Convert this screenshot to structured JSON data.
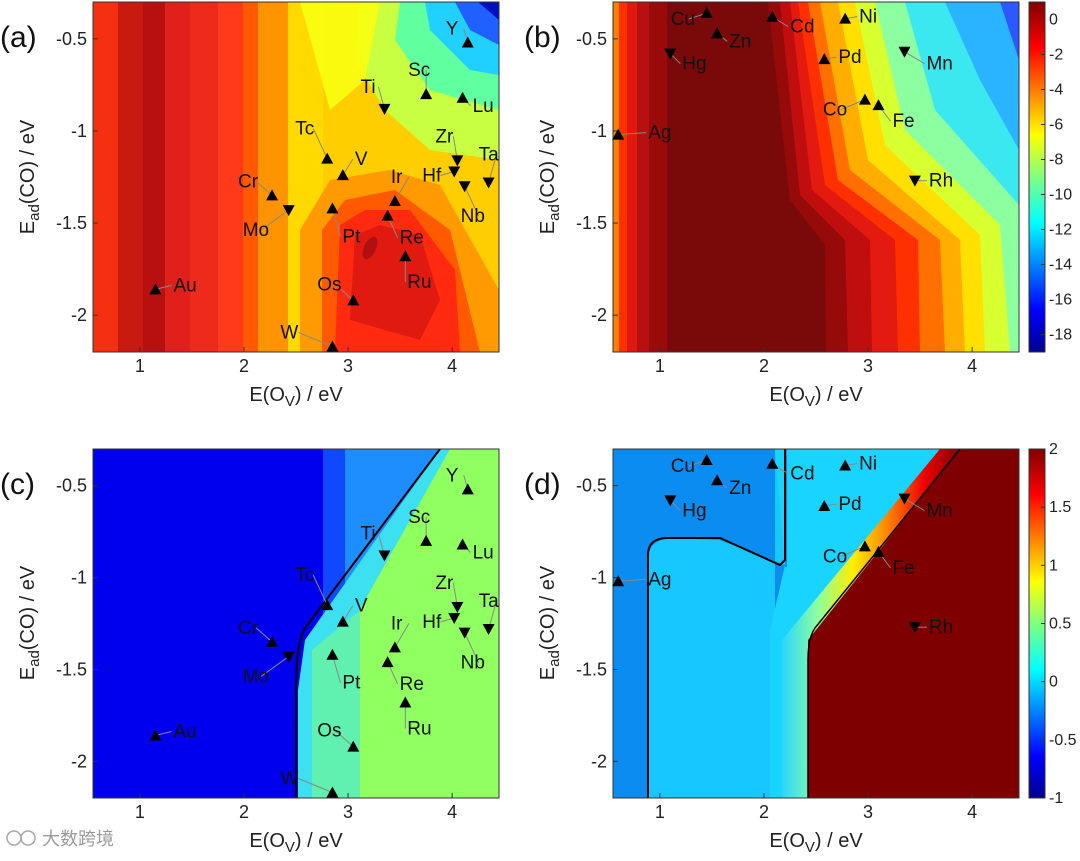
{
  "figure": {
    "watermark": "大数跨境",
    "xlabel": "E(O",
    "xlabel_sub": "V",
    "xlabel_tail": ") / eV",
    "ylabel": "E",
    "ylabel_sub": "ad",
    "ylabel_tail": "(CO) / eV"
  },
  "chart_data": [
    {
      "id": "a",
      "type": "heatmap",
      "panel_label": "(a)",
      "xlim": [
        0.55,
        4.45
      ],
      "ylim": [
        -2.2,
        -0.3
      ],
      "xticks": [
        1,
        2,
        3,
        4
      ],
      "yticks": [
        -0.5,
        -1,
        -1.5,
        -2
      ],
      "xtick_labels": [
        "1",
        "2",
        "3",
        "4"
      ],
      "ytick_labels": [
        "-0.5",
        "-1",
        "-1.5",
        "-2"
      ],
      "points": [
        {
          "label": "Y",
          "x": 4.15,
          "y": -0.52,
          "m": "up"
        },
        {
          "label": "Lu",
          "x": 4.1,
          "y": -0.82,
          "m": "up"
        },
        {
          "label": "Sc",
          "x": 3.75,
          "y": -0.8,
          "m": "up"
        },
        {
          "label": "Ti",
          "x": 3.35,
          "y": -0.88,
          "m": "down"
        },
        {
          "label": "Tc",
          "x": 2.8,
          "y": -1.15,
          "m": "up"
        },
        {
          "label": "V",
          "x": 2.95,
          "y": -1.24,
          "m": "up"
        },
        {
          "label": "Zr",
          "x": 4.05,
          "y": -1.16,
          "m": "down"
        },
        {
          "label": "Ta",
          "x": 4.35,
          "y": -1.28,
          "m": "down"
        },
        {
          "label": "Hf",
          "x": 4.02,
          "y": -1.22,
          "m": "down"
        },
        {
          "label": "Nb",
          "x": 4.12,
          "y": -1.3,
          "m": "down"
        },
        {
          "label": "Cr",
          "x": 2.27,
          "y": -1.35,
          "m": "up"
        },
        {
          "label": "Mo",
          "x": 2.43,
          "y": -1.43,
          "m": "down"
        },
        {
          "label": "Ir",
          "x": 3.45,
          "y": -1.38,
          "m": "up"
        },
        {
          "label": "Pt",
          "x": 2.85,
          "y": -1.42,
          "m": "up"
        },
        {
          "label": "Re",
          "x": 3.38,
          "y": -1.46,
          "m": "up"
        },
        {
          "label": "Ru",
          "x": 3.55,
          "y": -1.68,
          "m": "up"
        },
        {
          "label": "Os",
          "x": 3.05,
          "y": -1.92,
          "m": "up"
        },
        {
          "label": "W",
          "x": 2.85,
          "y": -2.17,
          "m": "up"
        },
        {
          "label": "Au",
          "x": 1.15,
          "y": -1.86,
          "m": "up"
        }
      ]
    },
    {
      "id": "b",
      "type": "heatmap",
      "panel_label": "(b)",
      "xlim": [
        0.55,
        4.45
      ],
      "ylim": [
        -2.2,
        -0.3
      ],
      "xticks": [
        1,
        2,
        3,
        4
      ],
      "yticks": [
        -0.5,
        -1,
        -1.5,
        -2
      ],
      "xtick_labels": [
        "1",
        "2",
        "3",
        "4"
      ],
      "ytick_labels": [
        "-0.5",
        "-1",
        "-1.5",
        "-2"
      ],
      "colorbar": {
        "range": [
          -19,
          1
        ],
        "ticks": [
          0,
          -2,
          -4,
          -6,
          -8,
          -10,
          -12,
          -14,
          -16,
          -18
        ],
        "tick_labels": [
          "0",
          "-2",
          "-4",
          "-6",
          "-8",
          "-10",
          "-12",
          "-14",
          "-16",
          "-18"
        ]
      },
      "points": [
        {
          "label": "Cu",
          "x": 1.45,
          "y": -0.36,
          "m": "up"
        },
        {
          "label": "Zn",
          "x": 1.55,
          "y": -0.47,
          "m": "up"
        },
        {
          "label": "Cd",
          "x": 2.08,
          "y": -0.38,
          "m": "up"
        },
        {
          "label": "Ni",
          "x": 2.78,
          "y": -0.39,
          "m": "up"
        },
        {
          "label": "Hg",
          "x": 1.1,
          "y": -0.58,
          "m": "down"
        },
        {
          "label": "Pd",
          "x": 2.58,
          "y": -0.61,
          "m": "up"
        },
        {
          "label": "Mn",
          "x": 3.35,
          "y": -0.57,
          "m": "down"
        },
        {
          "label": "Co",
          "x": 2.97,
          "y": -0.83,
          "m": "up"
        },
        {
          "label": "Fe",
          "x": 3.1,
          "y": -0.86,
          "m": "up"
        },
        {
          "label": "Ag",
          "x": 0.6,
          "y": -1.02,
          "m": "up"
        },
        {
          "label": "Rh",
          "x": 3.45,
          "y": -1.27,
          "m": "down"
        }
      ]
    },
    {
      "id": "c",
      "type": "heatmap",
      "panel_label": "(c)",
      "xlim": [
        0.55,
        4.45
      ],
      "ylim": [
        -2.2,
        -0.3
      ],
      "xticks": [
        1,
        2,
        3,
        4
      ],
      "yticks": [
        -0.5,
        -1,
        -1.5,
        -2
      ],
      "xtick_labels": [
        "1",
        "2",
        "3",
        "4"
      ],
      "ytick_labels": [
        "-0.5",
        "-1",
        "-1.5",
        "-2"
      ],
      "points": [
        {
          "label": "Y",
          "x": 4.15,
          "y": -0.52,
          "m": "up"
        },
        {
          "label": "Lu",
          "x": 4.1,
          "y": -0.82,
          "m": "up"
        },
        {
          "label": "Sc",
          "x": 3.75,
          "y": -0.8,
          "m": "up"
        },
        {
          "label": "Ti",
          "x": 3.35,
          "y": -0.88,
          "m": "down"
        },
        {
          "label": "Tc",
          "x": 2.8,
          "y": -1.15,
          "m": "up"
        },
        {
          "label": "V",
          "x": 2.95,
          "y": -1.24,
          "m": "up"
        },
        {
          "label": "Zr",
          "x": 4.05,
          "y": -1.16,
          "m": "down"
        },
        {
          "label": "Ta",
          "x": 4.35,
          "y": -1.28,
          "m": "down"
        },
        {
          "label": "Hf",
          "x": 4.02,
          "y": -1.22,
          "m": "down"
        },
        {
          "label": "Nb",
          "x": 4.12,
          "y": -1.3,
          "m": "down"
        },
        {
          "label": "Cr",
          "x": 2.27,
          "y": -1.35,
          "m": "up"
        },
        {
          "label": "Mo",
          "x": 2.43,
          "y": -1.43,
          "m": "down"
        },
        {
          "label": "Ir",
          "x": 3.45,
          "y": -1.38,
          "m": "up"
        },
        {
          "label": "Pt",
          "x": 2.85,
          "y": -1.42,
          "m": "up"
        },
        {
          "label": "Re",
          "x": 3.38,
          "y": -1.46,
          "m": "up"
        },
        {
          "label": "Ru",
          "x": 3.55,
          "y": -1.68,
          "m": "up"
        },
        {
          "label": "Os",
          "x": 3.05,
          "y": -1.92,
          "m": "up"
        },
        {
          "label": "W",
          "x": 2.85,
          "y": -2.17,
          "m": "up"
        },
        {
          "label": "Au",
          "x": 1.15,
          "y": -1.86,
          "m": "up"
        }
      ]
    },
    {
      "id": "d",
      "type": "heatmap",
      "panel_label": "(d)",
      "xlim": [
        0.55,
        4.45
      ],
      "ylim": [
        -2.2,
        -0.3
      ],
      "xticks": [
        1,
        2,
        3,
        4
      ],
      "yticks": [
        -0.5,
        -1,
        -1.5,
        -2
      ],
      "xtick_labels": [
        "1",
        "2",
        "3",
        "4"
      ],
      "ytick_labels": [
        "-0.5",
        "-1",
        "-1.5",
        "-2"
      ],
      "colorbar": {
        "range": [
          -1,
          2
        ],
        "ticks": [
          2,
          1.5,
          1,
          0.5,
          0,
          -0.5,
          -1
        ],
        "tick_labels": [
          "2",
          "1.5",
          "1",
          "0.5",
          "0",
          "-0.5",
          "-1"
        ]
      },
      "points": [
        {
          "label": "Cu",
          "x": 1.45,
          "y": -0.36,
          "m": "up"
        },
        {
          "label": "Zn",
          "x": 1.55,
          "y": -0.47,
          "m": "up"
        },
        {
          "label": "Cd",
          "x": 2.08,
          "y": -0.38,
          "m": "up"
        },
        {
          "label": "Ni",
          "x": 2.78,
          "y": -0.39,
          "m": "up"
        },
        {
          "label": "Hg",
          "x": 1.1,
          "y": -0.58,
          "m": "down"
        },
        {
          "label": "Pd",
          "x": 2.58,
          "y": -0.61,
          "m": "up"
        },
        {
          "label": "Mn",
          "x": 3.35,
          "y": -0.57,
          "m": "down"
        },
        {
          "label": "Co",
          "x": 2.97,
          "y": -0.83,
          "m": "up"
        },
        {
          "label": "Fe",
          "x": 3.1,
          "y": -0.86,
          "m": "up"
        },
        {
          "label": "Ag",
          "x": 0.6,
          "y": -1.02,
          "m": "up"
        },
        {
          "label": "Rh",
          "x": 3.45,
          "y": -1.27,
          "m": "down"
        }
      ]
    }
  ]
}
